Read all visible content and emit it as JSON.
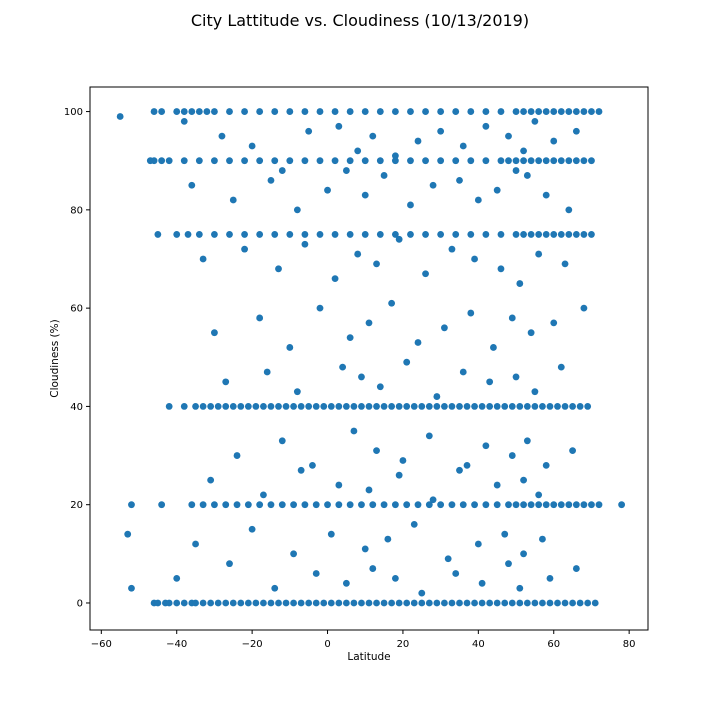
{
  "chart_data": {
    "type": "scatter",
    "title": "City Lattitude vs. Cloudiness (10/13/2019)",
    "xlabel": "Latitude",
    "ylabel": "Cloudiness (%)",
    "xlim": [
      -63,
      85
    ],
    "ylim": [
      -5.5,
      105
    ],
    "x_ticks": [
      -60,
      -40,
      -20,
      0,
      20,
      40,
      60,
      80
    ],
    "x_tick_labels": [
      "−60",
      "−40",
      "−20",
      "0",
      "20",
      "40",
      "60",
      "80"
    ],
    "y_ticks": [
      0,
      20,
      40,
      60,
      80,
      100
    ],
    "y_tick_labels": [
      "0",
      "20",
      "40",
      "60",
      "80",
      "100"
    ],
    "grid": false,
    "legend": "none",
    "marker_color": "#1f77b4",
    "series": [
      {
        "x": [
          -55,
          -53,
          -52,
          -46,
          -45,
          -43,
          -42,
          -40,
          -38,
          -36,
          -35,
          -33,
          -31,
          -29,
          -27,
          -25,
          -23,
          -21,
          -19,
          -17,
          -15,
          -13,
          -11,
          -9,
          -7,
          -5,
          -3,
          -1,
          1,
          3,
          5,
          7,
          9,
          11,
          13,
          15,
          17,
          19,
          21,
          23,
          25,
          27,
          29,
          31,
          33,
          35,
          37,
          39,
          41,
          43,
          45,
          47,
          49,
          51,
          53,
          55,
          57,
          59,
          61,
          63,
          65,
          67,
          69,
          71,
          78,
          -46,
          -44,
          -40,
          -38,
          -36,
          -34,
          -32,
          -30,
          -26,
          -22,
          -18,
          -14,
          -10,
          -6,
          -2,
          2,
          6,
          10,
          14,
          18,
          22,
          26,
          30,
          34,
          38,
          42,
          46,
          50,
          52,
          54,
          56,
          58,
          60,
          62,
          64,
          66,
          68,
          70,
          72,
          -42,
          -38,
          -35,
          -33,
          -31,
          -29,
          -27,
          -25,
          -23,
          -21,
          -19,
          -17,
          -15,
          -13,
          -11,
          -9,
          -7,
          -5,
          -3,
          -1,
          1,
          3,
          5,
          7,
          9,
          11,
          13,
          15,
          17,
          19,
          21,
          23,
          25,
          27,
          29,
          31,
          33,
          35,
          37,
          39,
          41,
          43,
          45,
          47,
          49,
          51,
          53,
          55,
          57,
          59,
          61,
          63,
          65,
          67,
          69,
          -45,
          -40,
          -37,
          -34,
          -30,
          -26,
          -22,
          -18,
          -14,
          -10,
          -6,
          -2,
          2,
          6,
          10,
          14,
          18,
          22,
          26,
          30,
          34,
          38,
          42,
          46,
          50,
          52,
          54,
          56,
          58,
          60,
          62,
          64,
          66,
          68,
          70,
          -52,
          -44,
          -36,
          -33,
          -30,
          -27,
          -24,
          -21,
          -18,
          -15,
          -12,
          -9,
          -6,
          -3,
          0,
          3,
          6,
          9,
          12,
          15,
          18,
          21,
          24,
          27,
          30,
          33,
          36,
          39,
          42,
          45,
          48,
          50,
          52,
          54,
          56,
          58,
          60,
          62,
          64,
          66,
          68,
          70,
          72,
          -47,
          -46,
          -44,
          -42,
          -38,
          -34,
          -30,
          -26,
          -22,
          -18,
          -14,
          -10,
          -6,
          -2,
          2,
          6,
          10,
          14,
          18,
          22,
          26,
          30,
          34,
          38,
          42,
          46,
          48,
          50,
          52,
          54,
          56,
          58,
          60,
          62,
          64,
          66,
          68,
          70,
          -38,
          -28,
          -20,
          -12,
          -5,
          3,
          8,
          12,
          18,
          24,
          30,
          36,
          42,
          48,
          52,
          55,
          60,
          66,
          -36,
          -25,
          -15,
          -8,
          0,
          5,
          10,
          15,
          22,
          28,
          35,
          40,
          45,
          50,
          53,
          58,
          64,
          -33,
          -22,
          -13,
          -6,
          2,
          8,
          13,
          19,
          26,
          33,
          39,
          46,
          51,
          56,
          63,
          -30,
          -18,
          -10,
          -2,
          6,
          11,
          17,
          24,
          31,
          38,
          44,
          49,
          54,
          60,
          68,
          -27,
          -16,
          -8,
          4,
          9,
          14,
          21,
          29,
          36,
          43,
          50,
          55,
          62,
          -24,
          -12,
          -4,
          7,
          13,
          20,
          27,
          35,
          42,
          49,
          53,
          58,
          65,
          -35,
          -20,
          -9,
          1,
          10,
          16,
          23,
          32,
          40,
          47,
          52,
          57,
          -40,
          -26,
          -14,
          -3,
          5,
          12,
          18,
          25,
          34,
          41,
          48,
          51,
          59,
          66,
          -31,
          -17,
          -7,
          3,
          11,
          19,
          28,
          37,
          45,
          52,
          56
        ],
        "y": [
          99,
          14,
          3,
          0,
          0,
          0,
          0,
          0,
          0,
          0,
          0,
          0,
          0,
          0,
          0,
          0,
          0,
          0,
          0,
          0,
          0,
          0,
          0,
          0,
          0,
          0,
          0,
          0,
          0,
          0,
          0,
          0,
          0,
          0,
          0,
          0,
          0,
          0,
          0,
          0,
          0,
          0,
          0,
          0,
          0,
          0,
          0,
          0,
          0,
          0,
          0,
          0,
          0,
          0,
          0,
          0,
          0,
          0,
          0,
          0,
          0,
          0,
          0,
          0,
          20,
          100,
          100,
          100,
          100,
          100,
          100,
          100,
          100,
          100,
          100,
          100,
          100,
          100,
          100,
          100,
          100,
          100,
          100,
          100,
          100,
          100,
          100,
          100,
          100,
          100,
          100,
          100,
          100,
          100,
          100,
          100,
          100,
          100,
          100,
          100,
          100,
          100,
          100,
          100,
          40,
          40,
          40,
          40,
          40,
          40,
          40,
          40,
          40,
          40,
          40,
          40,
          40,
          40,
          40,
          40,
          40,
          40,
          40,
          40,
          40,
          40,
          40,
          40,
          40,
          40,
          40,
          40,
          40,
          40,
          40,
          40,
          40,
          40,
          40,
          40,
          40,
          40,
          40,
          40,
          40,
          40,
          40,
          40,
          40,
          40,
          40,
          40,
          40,
          40,
          40,
          40,
          40,
          40,
          40,
          75,
          75,
          75,
          75,
          75,
          75,
          75,
          75,
          75,
          75,
          75,
          75,
          75,
          75,
          75,
          75,
          75,
          75,
          75,
          75,
          75,
          75,
          75,
          75,
          75,
          75,
          75,
          75,
          75,
          75,
          75,
          75,
          75,
          75,
          75,
          20,
          20,
          20,
          20,
          20,
          20,
          20,
          20,
          20,
          20,
          20,
          20,
          20,
          20,
          20,
          20,
          20,
          20,
          20,
          20,
          20,
          20,
          20,
          20,
          20,
          20,
          20,
          20,
          20,
          20,
          20,
          20,
          20,
          20,
          20,
          20,
          20,
          20,
          20,
          20,
          20,
          20,
          20,
          90,
          90,
          90,
          90,
          90,
          90,
          90,
          90,
          90,
          90,
          90,
          90,
          90,
          90,
          90,
          90,
          90,
          90,
          90,
          90,
          90,
          90,
          90,
          90,
          90,
          90,
          90,
          90,
          90,
          90,
          90,
          90,
          90,
          90,
          90,
          90,
          90,
          90,
          98,
          95,
          93,
          88,
          96,
          97,
          92,
          95,
          91,
          94,
          96,
          93,
          97,
          95,
          92,
          98,
          94,
          96,
          85,
          82,
          86,
          80,
          84,
          88,
          83,
          87,
          81,
          85,
          86,
          82,
          84,
          88,
          87,
          83,
          80,
          70,
          72,
          68,
          73,
          66,
          71,
          69,
          74,
          67,
          72,
          70,
          68,
          65,
          71,
          69,
          55,
          58,
          52,
          60,
          54,
          57,
          61,
          53,
          56,
          59,
          52,
          58,
          55,
          57,
          60,
          45,
          47,
          43,
          48,
          46,
          44,
          49,
          42,
          47,
          45,
          46,
          43,
          48,
          30,
          33,
          28,
          35,
          31,
          29,
          34,
          27,
          32,
          30,
          33,
          28,
          31,
          12,
          15,
          10,
          14,
          11,
          13,
          16,
          9,
          12,
          14,
          10,
          13,
          5,
          8,
          3,
          6,
          4,
          7,
          5,
          2,
          6,
          4,
          8,
          3,
          5,
          7,
          25,
          22,
          27,
          24,
          23,
          26,
          21,
          28,
          24,
          25,
          22
        ]
      }
    ]
  }
}
